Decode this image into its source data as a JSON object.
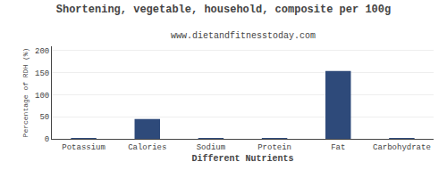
{
  "chart_data": {
    "type": "bar",
    "title": "Shortening, vegetable, household, composite per 100g",
    "subtitle": "www.dietandfitnesstoday.com",
    "xlabel": "Different Nutrients",
    "ylabel": "Percentage of RDH (%)",
    "categories": [
      "Potassium",
      "Calories",
      "Sodium",
      "Protein",
      "Fat",
      "Carbohydrate"
    ],
    "values": [
      0.5,
      45,
      0.3,
      0.2,
      154,
      0.4
    ],
    "color": "#2e4a7a",
    "ylim": [
      0,
      210
    ],
    "yticks": [
      0,
      50,
      100,
      150,
      200
    ],
    "grid": true
  }
}
